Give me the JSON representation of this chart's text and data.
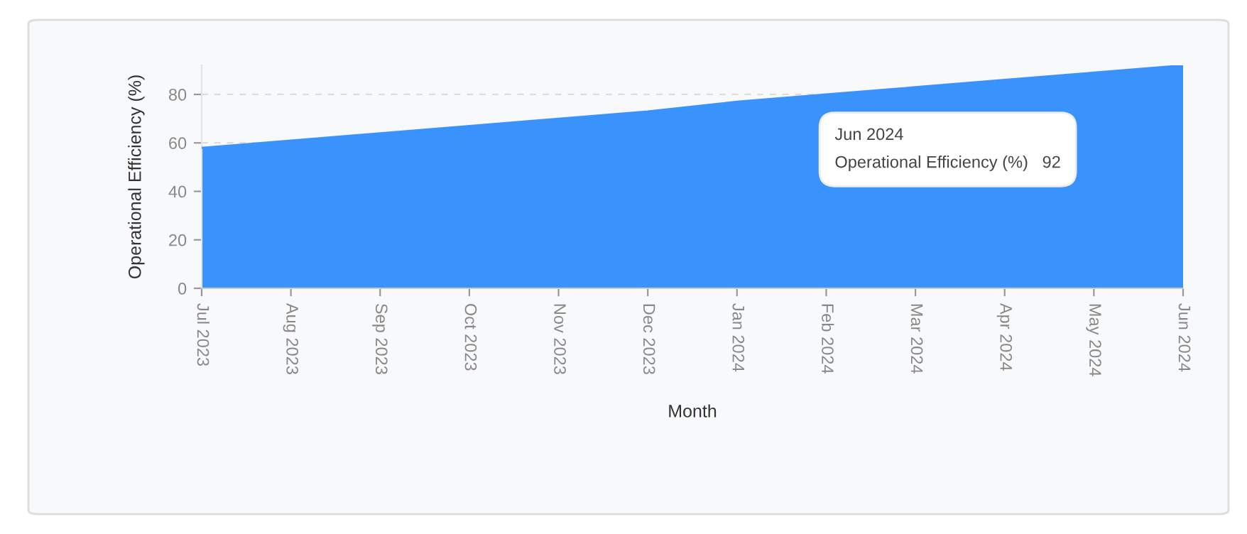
{
  "chart_data": {
    "type": "area",
    "xlabel": "Month",
    "ylabel": "Operational Efficiency (%)",
    "categories": [
      "Jul 2023",
      "Aug 2023",
      "Sep 2023",
      "Oct 2023",
      "Nov 2023",
      "Dec 2023",
      "Jan 2024",
      "Feb 2024",
      "Mar 2024",
      "Apr 2024",
      "May 2024",
      "Jun 2024"
    ],
    "series": [
      {
        "color": "#3a92fd",
        "values": [
          58,
          61,
          64,
          67,
          70,
          73,
          77,
          80,
          83,
          86,
          89,
          92
        ]
      }
    ],
    "ylim": [
      0,
      92
    ],
    "yticks": [
      0,
      20,
      40,
      60,
      80
    ],
    "grid": "y",
    "annotations": [
      "Jun 2024\nOperational Efficiency (%)   92"
    ]
  }
}
